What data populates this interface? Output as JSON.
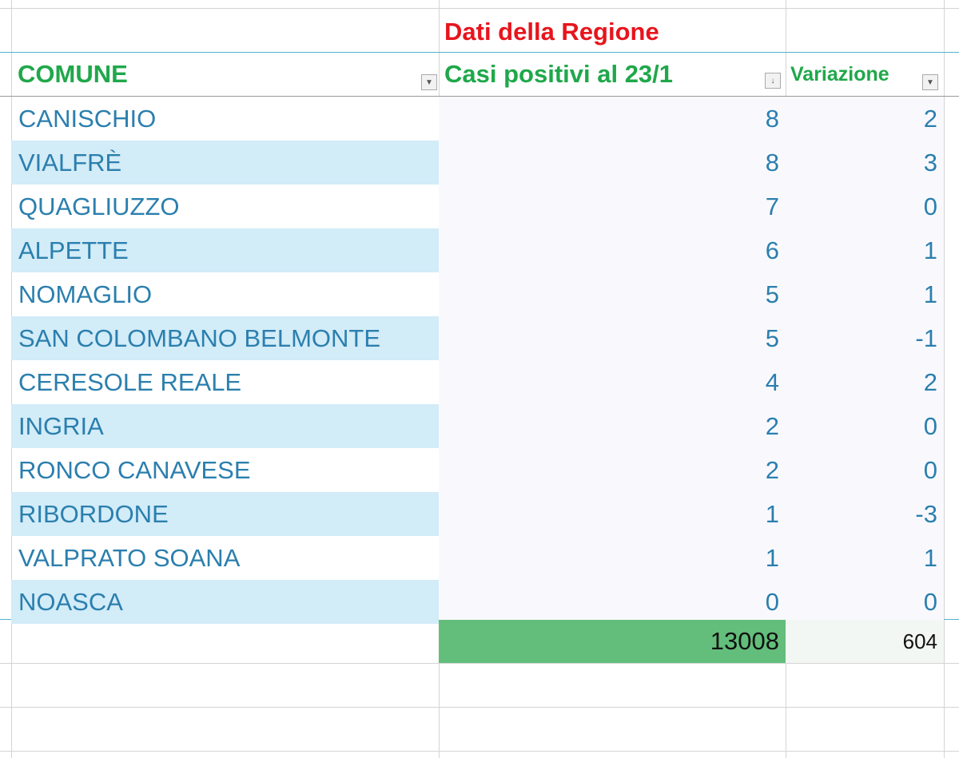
{
  "sheet": {
    "title": "Dati della Regione",
    "headers": {
      "comune": "COMUNE",
      "casi": "Casi positivi al 23/1",
      "variazione": "Variazione"
    },
    "rows": [
      {
        "comune": "CANISCHIO",
        "casi": "8",
        "variazione": "2"
      },
      {
        "comune": "VIALFRÈ",
        "casi": "8",
        "variazione": "3"
      },
      {
        "comune": "QUAGLIUZZO",
        "casi": "7",
        "variazione": "0"
      },
      {
        "comune": "ALPETTE",
        "casi": "6",
        "variazione": "1"
      },
      {
        "comune": "NOMAGLIO",
        "casi": "5",
        "variazione": "1"
      },
      {
        "comune": "SAN COLOMBANO BELMONTE",
        "casi": "5",
        "variazione": "-1"
      },
      {
        "comune": "CERESOLE REALE",
        "casi": "4",
        "variazione": "2"
      },
      {
        "comune": "INGRIA",
        "casi": "2",
        "variazione": "0"
      },
      {
        "comune": "RONCO CANAVESE",
        "casi": "2",
        "variazione": "0"
      },
      {
        "comune": "RIBORDONE",
        "casi": "1",
        "variazione": "-3"
      },
      {
        "comune": "VALPRATO SOANA",
        "casi": "1",
        "variazione": "1"
      },
      {
        "comune": "NOASCA",
        "casi": "0",
        "variazione": "0"
      }
    ],
    "totals": {
      "casi": "13008",
      "variazione": "604"
    },
    "colors": {
      "title": "#e8141c",
      "header": "#1fa84a",
      "text": "#2b7fae",
      "band": "#d2ecf8",
      "total_fill": "#63be7b"
    }
  }
}
